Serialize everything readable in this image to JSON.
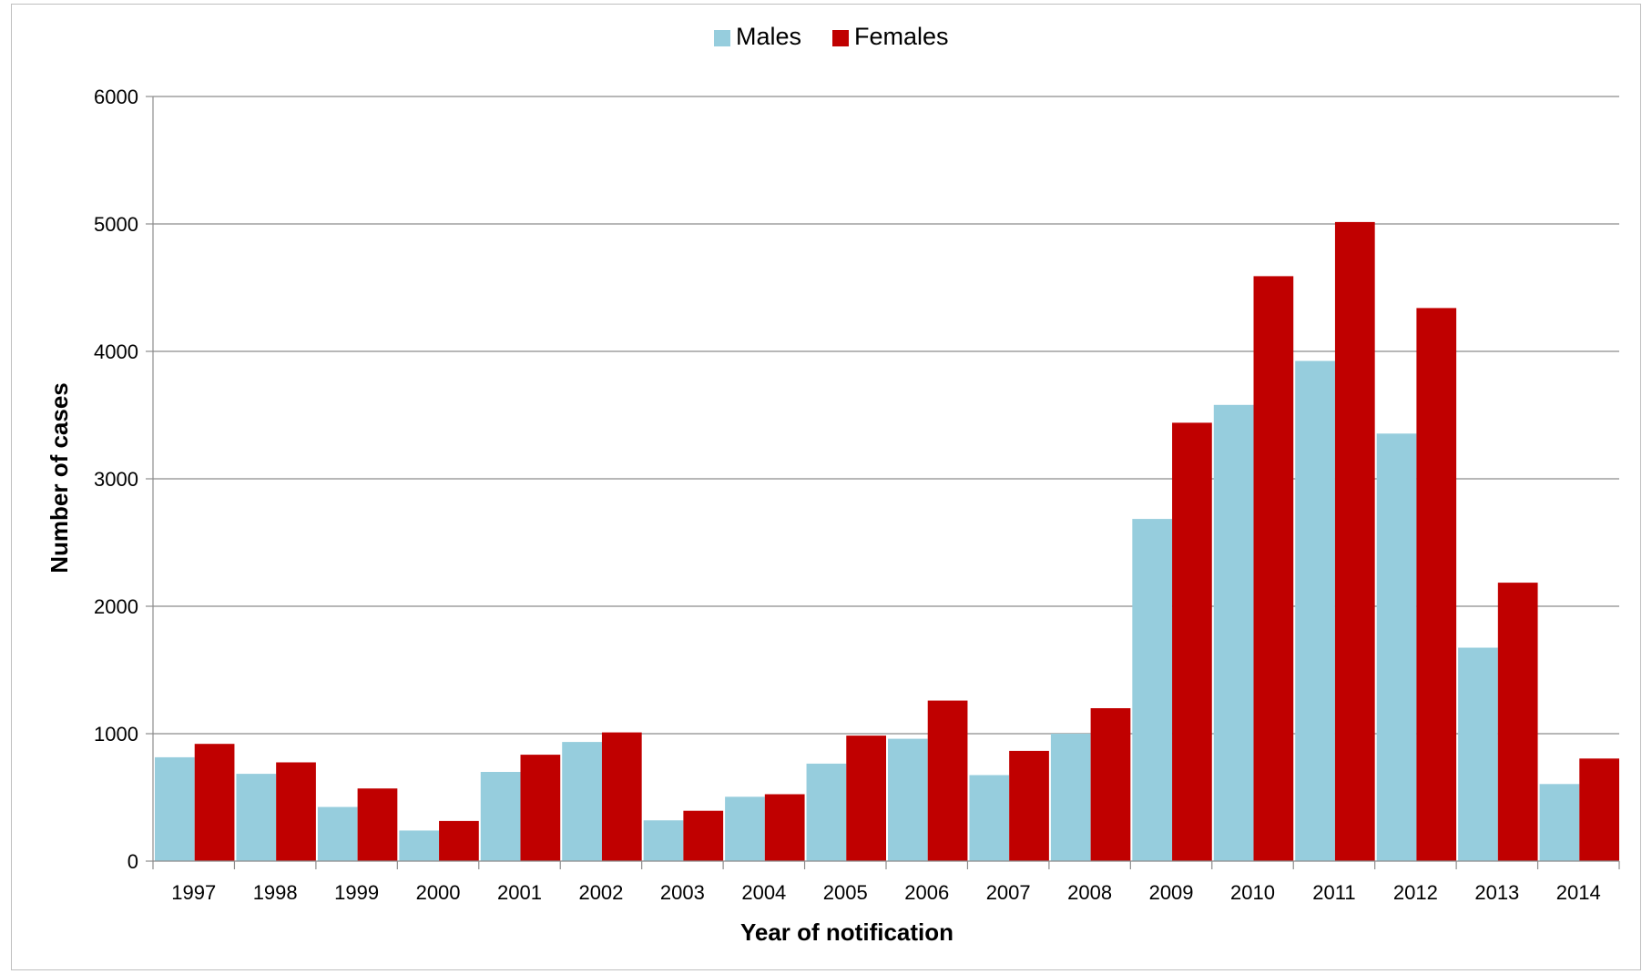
{
  "chart_data": {
    "type": "bar",
    "categories": [
      "1997",
      "1998",
      "1999",
      "2000",
      "2001",
      "2002",
      "2003",
      "2004",
      "2005",
      "2006",
      "2007",
      "2008",
      "2009",
      "2010",
      "2011",
      "2012",
      "2013",
      "2014"
    ],
    "series": [
      {
        "name": "Males",
        "color": "#96cddd",
        "values": [
          815,
          685,
          425,
          240,
          700,
          935,
          320,
          505,
          765,
          960,
          675,
          1000,
          2685,
          3580,
          3925,
          3355,
          1675,
          605
        ]
      },
      {
        "name": "Females",
        "color": "#c00000",
        "values": [
          920,
          775,
          570,
          315,
          835,
          1010,
          395,
          525,
          985,
          1260,
          865,
          1200,
          3440,
          4590,
          5015,
          4340,
          2185,
          805
        ]
      }
    ],
    "xlabel": "Year of notification",
    "ylabel": "Number of cases",
    "ylim": [
      0,
      6000
    ],
    "yticks": [
      0,
      1000,
      2000,
      3000,
      4000,
      5000,
      6000
    ],
    "grid": true,
    "legend": "top-center"
  }
}
